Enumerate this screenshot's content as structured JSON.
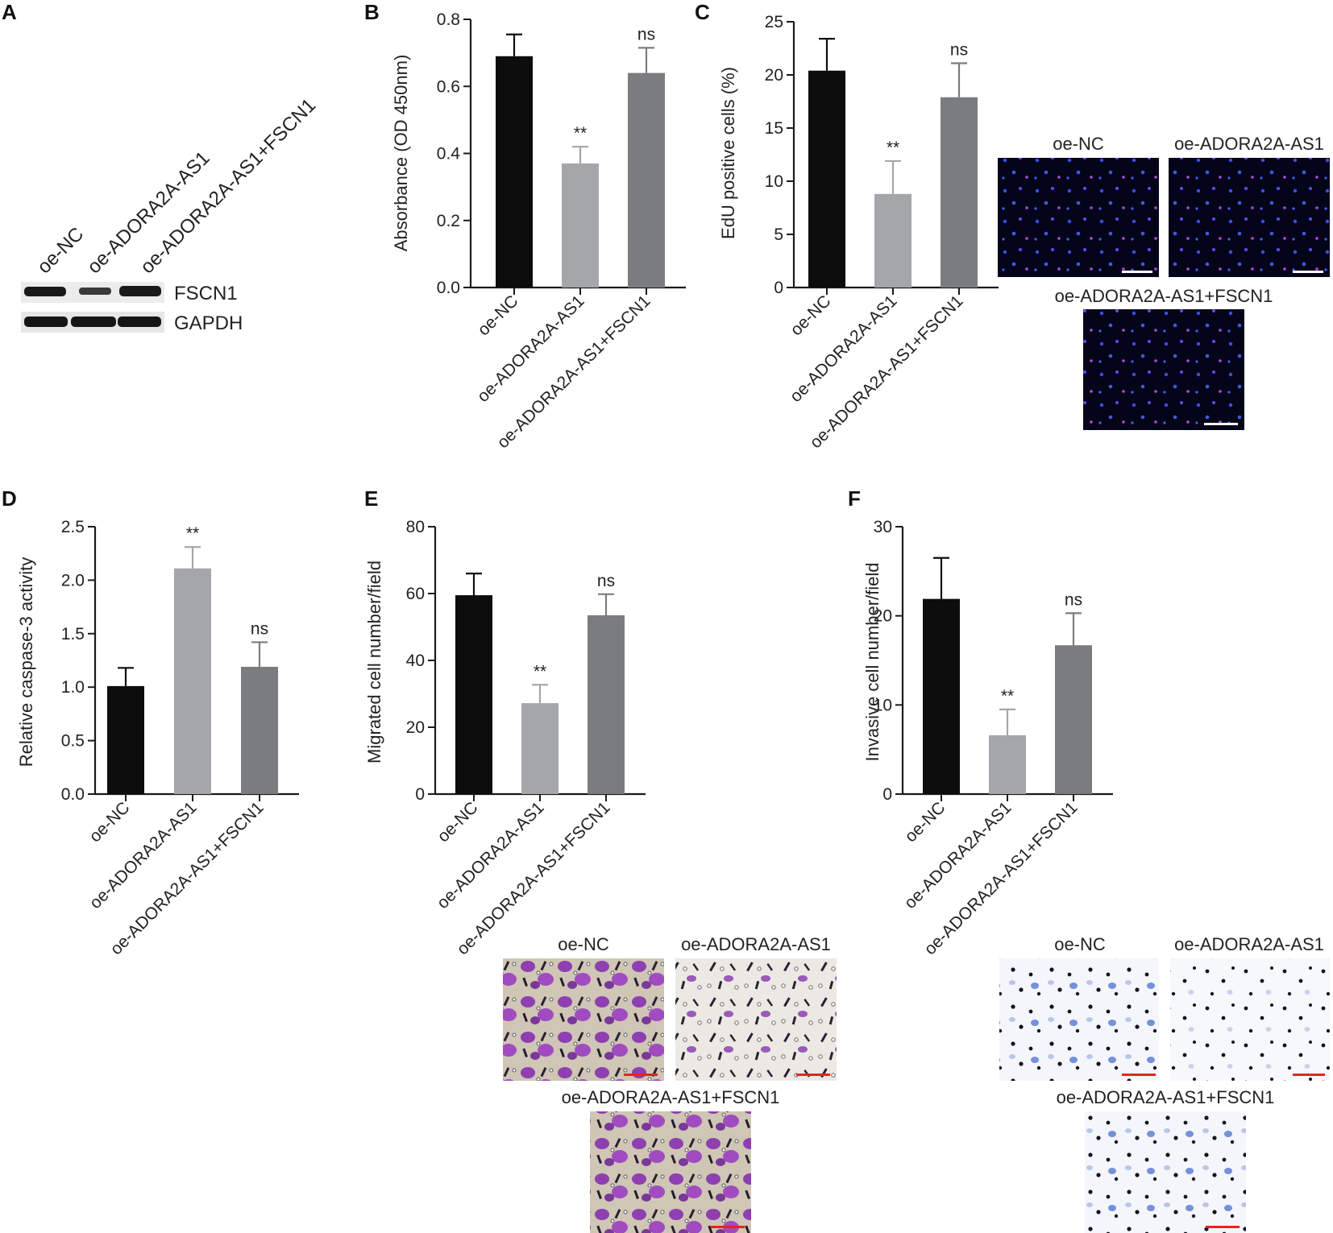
{
  "colors": {
    "bar_oe_nc": "#0d0d0d",
    "bar_oe_adora2a_as1": "#a5a6aa",
    "bar_oe_adora2a_as1_fscn1": "#7b7c7e",
    "axis": "#1a1a1a",
    "scale_bar_white": "#ffffff",
    "scale_bar_red": "#e8231f"
  },
  "panels": {
    "A": {
      "letter": "A",
      "lanes": [
        "oe-NC",
        "oe-ADORA2A-AS1",
        "oe-ADORA2A-AS1+FSCN1"
      ],
      "blots": [
        {
          "label": "FSCN1",
          "band_intensity": [
            1.0,
            0.55,
            0.95
          ]
        },
        {
          "label": "GAPDH",
          "band_intensity": [
            1.0,
            1.0,
            1.0
          ]
        }
      ]
    },
    "B": {
      "letter": "B"
    },
    "C": {
      "letter": "C",
      "micrographs": [
        {
          "title": "oe-NC"
        },
        {
          "title": "oe-ADORA2A-AS1"
        },
        {
          "title": "oe-ADORA2A-AS1+FSCN1"
        }
      ]
    },
    "D": {
      "letter": "D"
    },
    "E": {
      "letter": "E",
      "micrographs": [
        {
          "title": "oe-NC"
        },
        {
          "title": "oe-ADORA2A-AS1"
        },
        {
          "title": "oe-ADORA2A-AS1+FSCN1"
        }
      ]
    },
    "F": {
      "letter": "F",
      "micrographs": [
        {
          "title": "oe-NC"
        },
        {
          "title": "oe-ADORA2A-AS1"
        },
        {
          "title": "oe-ADORA2A-AS1+FSCN1"
        }
      ]
    }
  },
  "chart_data": [
    {
      "panel": "B",
      "type": "bar",
      "categories": [
        "oe-NC",
        "oe-ADORA2A-AS1",
        "oe-ADORA2A-AS1+FSCN1"
      ],
      "values": [
        0.69,
        0.37,
        0.64
      ],
      "errors": [
        0.065,
        0.05,
        0.075
      ],
      "significance": [
        "",
        "**",
        "ns"
      ],
      "ylabel": "Absorbance (OD 450nm)",
      "ylim": [
        0,
        0.8
      ],
      "yticks": [
        0.0,
        0.2,
        0.4,
        0.6,
        0.8
      ],
      "tick_labels": [
        "0.0",
        "0.2",
        "0.4",
        "0.6",
        "0.8"
      ]
    },
    {
      "panel": "C",
      "type": "bar",
      "categories": [
        "oe-NC",
        "oe-ADORA2A-AS1",
        "oe-ADORA2A-AS1+FSCN1"
      ],
      "values": [
        20.4,
        8.8,
        17.9
      ],
      "errors": [
        3.0,
        3.1,
        3.2
      ],
      "significance": [
        "",
        "**",
        "ns"
      ],
      "ylabel": "EdU positive cells (%)",
      "ylim": [
        0,
        25
      ],
      "yticks": [
        0,
        5,
        10,
        15,
        20,
        25
      ],
      "tick_labels": [
        "0",
        "5",
        "10",
        "15",
        "20",
        "25"
      ]
    },
    {
      "panel": "D",
      "type": "bar",
      "categories": [
        "oe-NC",
        "oe-ADORA2A-AS1",
        "oe-ADORA2A-AS1+FSCN1"
      ],
      "values": [
        1.01,
        2.11,
        1.19
      ],
      "errors": [
        0.17,
        0.2,
        0.23
      ],
      "significance": [
        "",
        "**",
        "ns"
      ],
      "ylabel": "Relative caspase-3 activity",
      "ylim": [
        0,
        2.5
      ],
      "yticks": [
        0.0,
        0.5,
        1.0,
        1.5,
        2.0,
        2.5
      ],
      "tick_labels": [
        "0.0",
        "0.5",
        "1.0",
        "1.5",
        "2.0",
        "2.5"
      ]
    },
    {
      "panel": "E",
      "type": "bar",
      "categories": [
        "oe-NC",
        "oe-ADORA2A-AS1",
        "oe-ADORA2A-AS1+FSCN1"
      ],
      "values": [
        59.5,
        27.2,
        53.5
      ],
      "errors": [
        6.5,
        5.5,
        6.3
      ],
      "significance": [
        "",
        "**",
        "ns"
      ],
      "ylabel": "Migrated cell number/field",
      "ylim": [
        0,
        80
      ],
      "yticks": [
        0,
        20,
        40,
        60,
        80
      ],
      "tick_labels": [
        "0",
        "20",
        "40",
        "60",
        "80"
      ]
    },
    {
      "panel": "F",
      "type": "bar",
      "categories": [
        "oe-NC",
        "oe-ADORA2A-AS1",
        "oe-ADORA2A-AS1+FSCN1"
      ],
      "values": [
        21.9,
        6.6,
        16.7
      ],
      "errors": [
        4.6,
        2.9,
        3.6
      ],
      "significance": [
        "",
        "**",
        "ns"
      ],
      "ylabel": "Invasive cell number/field",
      "ylim": [
        0,
        30
      ],
      "yticks": [
        0,
        10,
        20,
        30
      ],
      "tick_labels": [
        "0",
        "10",
        "20",
        "30"
      ]
    }
  ]
}
